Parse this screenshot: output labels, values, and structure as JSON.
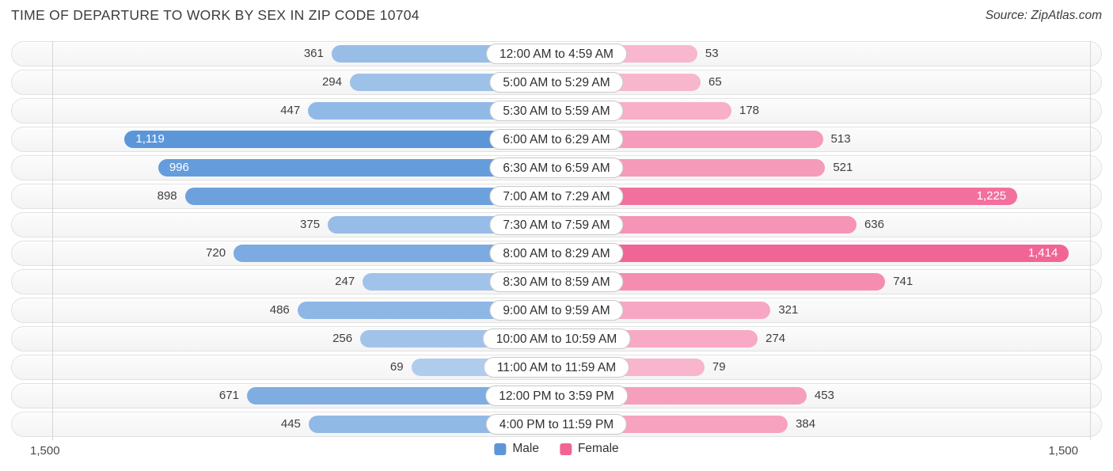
{
  "title": "TIME OF DEPARTURE TO WORK BY SEX IN ZIP CODE 10704",
  "source": "Source: ZipAtlas.com",
  "axis": {
    "left_label": "1,500",
    "right_label": "1,500",
    "max": 1500
  },
  "legend": [
    {
      "label": "Male",
      "color": "#5b96d9"
    },
    {
      "label": "Female",
      "color": "#f16596"
    }
  ],
  "chart_data": {
    "type": "bar",
    "subtype": "bidirectional-butterfly",
    "title": "Time of Departure to Work by Sex in Zip Code 10704",
    "xlim": [
      0,
      1500
    ],
    "grid": "edge-gridlines-at-1500",
    "legend_position": "bottom-center",
    "categories": [
      "12:00 AM to 4:59 AM",
      "5:00 AM to 5:29 AM",
      "5:30 AM to 5:59 AM",
      "6:00 AM to 6:29 AM",
      "6:30 AM to 6:59 AM",
      "7:00 AM to 7:29 AM",
      "7:30 AM to 7:59 AM",
      "8:00 AM to 8:29 AM",
      "8:30 AM to 8:59 AM",
      "9:00 AM to 9:59 AM",
      "10:00 AM to 10:59 AM",
      "11:00 AM to 11:59 AM",
      "12:00 PM to 3:59 PM",
      "4:00 PM to 11:59 PM"
    ],
    "series": [
      {
        "name": "Male",
        "direction": "left",
        "base_color": "#5b96d9",
        "values": [
          361,
          294,
          447,
          1119,
          996,
          898,
          375,
          720,
          247,
          486,
          256,
          69,
          671,
          445
        ],
        "value_labels": [
          "361",
          "294",
          "447",
          "1,119",
          "996",
          "898",
          "375",
          "720",
          "247",
          "486",
          "256",
          "69",
          "671",
          "445"
        ]
      },
      {
        "name": "Female",
        "direction": "right",
        "base_color": "#f16596",
        "values": [
          53,
          65,
          178,
          513,
          521,
          1225,
          636,
          1414,
          741,
          321,
          274,
          79,
          453,
          384
        ],
        "value_labels": [
          "53",
          "65",
          "178",
          "513",
          "521",
          "1,225",
          "636",
          "1,414",
          "741",
          "321",
          "274",
          "79",
          "453",
          "384"
        ]
      }
    ]
  }
}
